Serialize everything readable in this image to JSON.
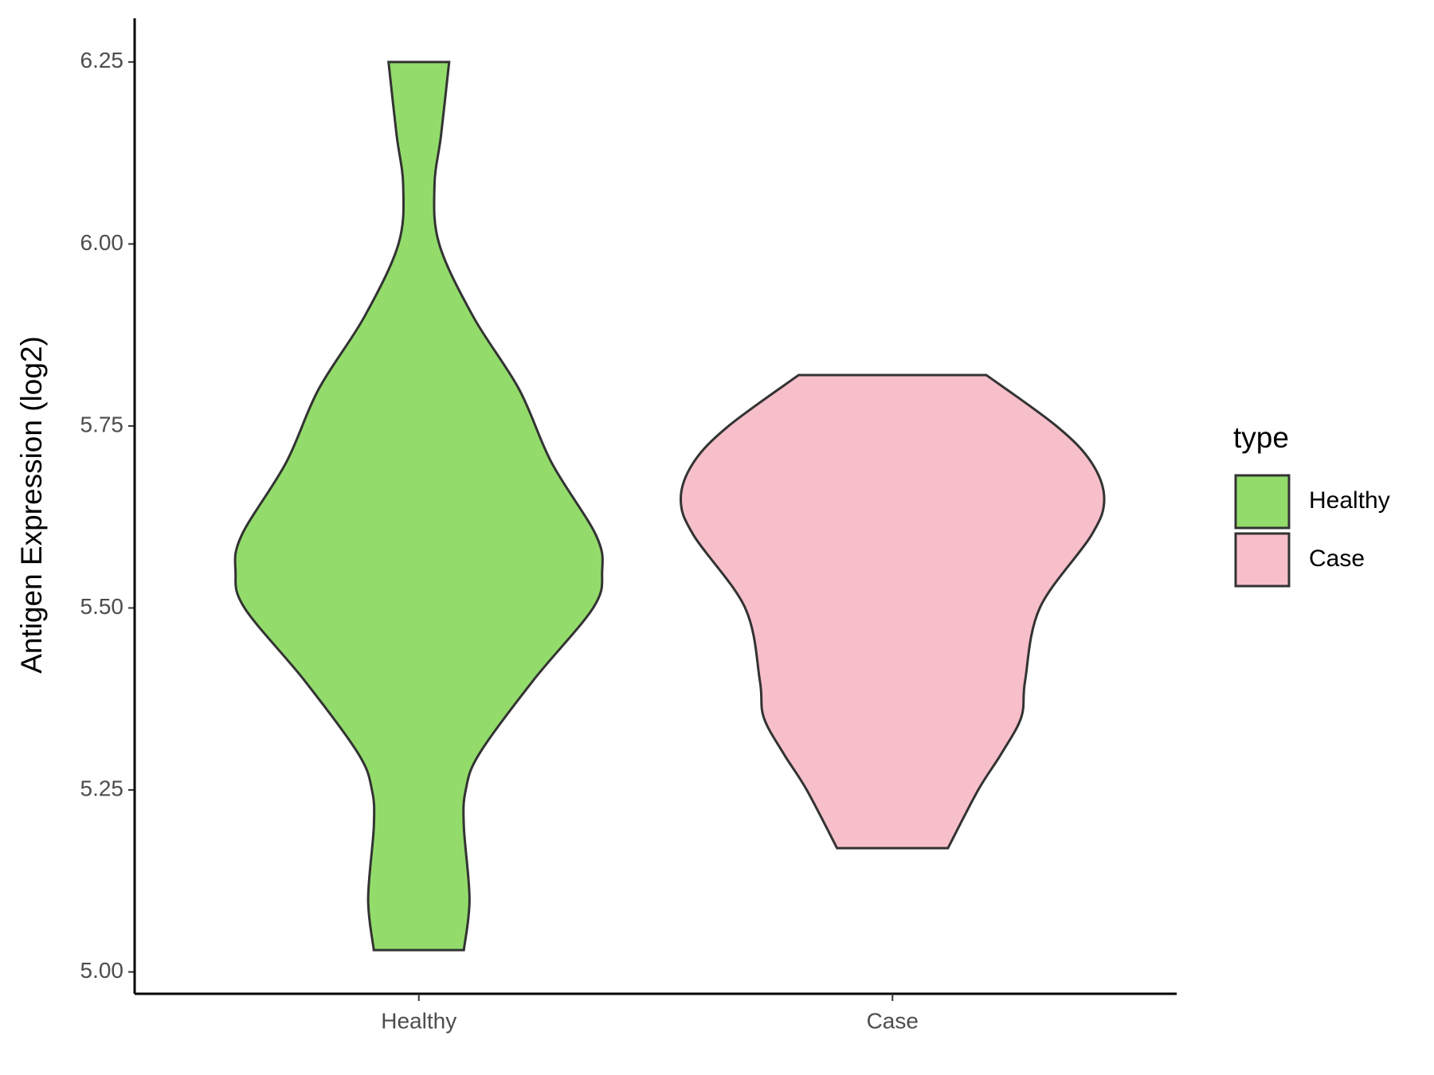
{
  "chart_data": {
    "type": "violin",
    "y_label": "Antigen Expression (log2)",
    "categories": [
      "Healthy",
      "Case"
    ],
    "legend_title": "type",
    "ylim": [
      4.97,
      6.31
    ],
    "yticks": [
      {
        "value": 5,
        "label": "5.00"
      },
      5.25,
      {
        "value": 5.5,
        "label": "5.50"
      },
      5.75,
      {
        "value": 6,
        "label": "6.00"
      },
      6.25
    ],
    "series": [
      {
        "name": "Healthy",
        "color": "#93dc6b",
        "y": [
          6.25,
          6.15,
          6.08,
          6.0,
          5.9,
          5.8,
          5.7,
          5.6,
          5.55,
          5.5,
          5.4,
          5.3,
          5.25,
          5.2,
          5.1,
          5.03
        ],
        "width": [
          0.064,
          0.047,
          0.033,
          0.043,
          0.115,
          0.212,
          0.28,
          0.374,
          0.387,
          0.368,
          0.241,
          0.128,
          0.099,
          0.095,
          0.107,
          0.095
        ]
      },
      {
        "name": "Case",
        "color": "#f7bfca",
        "y": [
          5.82,
          5.75,
          5.7,
          5.65,
          5.6,
          5.5,
          5.4,
          5.35,
          5.3,
          5.25,
          5.17
        ],
        "width": [
          0.198,
          0.346,
          0.42,
          0.447,
          0.42,
          0.311,
          0.28,
          0.272,
          0.23,
          0.181,
          0.117
        ]
      }
    ]
  }
}
